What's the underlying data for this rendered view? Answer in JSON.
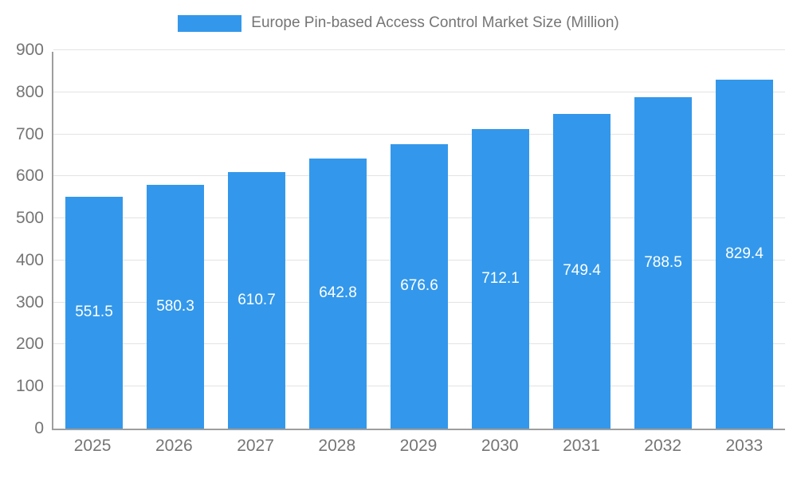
{
  "legend": {
    "title": "Europe Pin-based Access Control Market Size (Million)"
  },
  "colors": {
    "bar": "#3398eb",
    "bar_label": "#ffffff",
    "axis_text": "#757575",
    "grid": "#e3e3e3",
    "axis_line": "#9e9e9e"
  },
  "chart_data": {
    "type": "bar",
    "title": "Europe Pin-based Access Control Market Size (Million)",
    "categories": [
      "2025",
      "2026",
      "2027",
      "2028",
      "2029",
      "2030",
      "2031",
      "2032",
      "2033"
    ],
    "values": [
      551.5,
      580.3,
      610.7,
      642.8,
      676.6,
      712.1,
      749.4,
      788.5,
      829.4
    ],
    "xlabel": "",
    "ylabel": "",
    "ylim": [
      0,
      900
    ],
    "yticks": [
      0,
      100,
      200,
      300,
      400,
      500,
      600,
      700,
      800,
      900
    ],
    "grid": true,
    "legend_position": "top",
    "value_labels": "inside-center"
  }
}
